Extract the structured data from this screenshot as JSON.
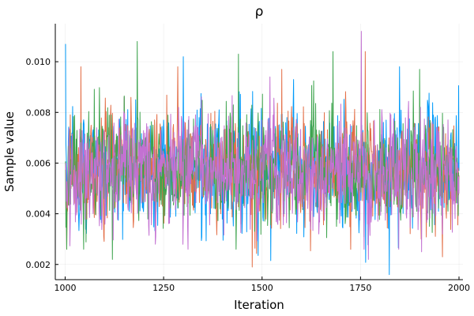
{
  "chart_data": {
    "type": "line",
    "title": "ρ",
    "xlabel": "Iteration",
    "ylabel": "Sample value",
    "xlim": [
      975,
      2010
    ],
    "ylim": [
      0.0014,
      0.0115
    ],
    "x_start": 1001,
    "x_end": 2000,
    "x_ticks": [
      1000,
      1250,
      1500,
      1750,
      2000
    ],
    "y_ticks": [
      0.002,
      0.004,
      0.006,
      0.008,
      0.01
    ],
    "x_tick_labels": [
      "1000",
      "1250",
      "1500",
      "1750",
      "2000"
    ],
    "y_tick_labels": [
      "0.002",
      "0.004",
      "0.006",
      "0.008",
      "0.010"
    ],
    "grid": true,
    "legend": "none",
    "series": [
      {
        "color": "#009AFA",
        "summary": {
          "mean": 0.0058,
          "min": 0.0016,
          "max": 0.0107
        },
        "keypoints": [
          [
            1001,
            0.0107
          ],
          [
            1021,
            0.0062
          ],
          [
            1300,
            0.0102
          ],
          [
            1580,
            0.0093
          ],
          [
            1823,
            0.0016
          ],
          [
            1849,
            0.0098
          ],
          [
            1990,
            0.0061
          ]
        ]
      },
      {
        "color": "#E36F47",
        "summary": {
          "mean": 0.0058,
          "min": 0.0019,
          "max": 0.0104
        },
        "keypoints": [
          [
            1004,
            0.0026
          ],
          [
            1040,
            0.0098
          ],
          [
            1286,
            0.0098
          ],
          [
            1475,
            0.0019
          ],
          [
            1550,
            0.0097
          ],
          [
            1762,
            0.0104
          ],
          [
            1998,
            0.0058
          ]
        ]
      },
      {
        "color": "#3EA44E",
        "summary": {
          "mean": 0.0058,
          "min": 0.0022,
          "max": 0.0108
        },
        "keypoints": [
          [
            1010,
            0.006
          ],
          [
            1120,
            0.0022
          ],
          [
            1183,
            0.0108
          ],
          [
            1440,
            0.0103
          ],
          [
            1680,
            0.0104
          ],
          [
            1900,
            0.0097
          ],
          [
            1995,
            0.0062
          ]
        ]
      },
      {
        "color": "#C371D2",
        "summary": {
          "mean": 0.0057,
          "min": 0.0022,
          "max": 0.0112
        },
        "keypoints": [
          [
            1002,
            0.006
          ],
          [
            1230,
            0.0031
          ],
          [
            1520,
            0.0094
          ],
          [
            1752,
            0.0112
          ],
          [
            1770,
            0.0022
          ],
          [
            1905,
            0.0025
          ],
          [
            2000,
            0.0048
          ]
        ]
      }
    ]
  }
}
